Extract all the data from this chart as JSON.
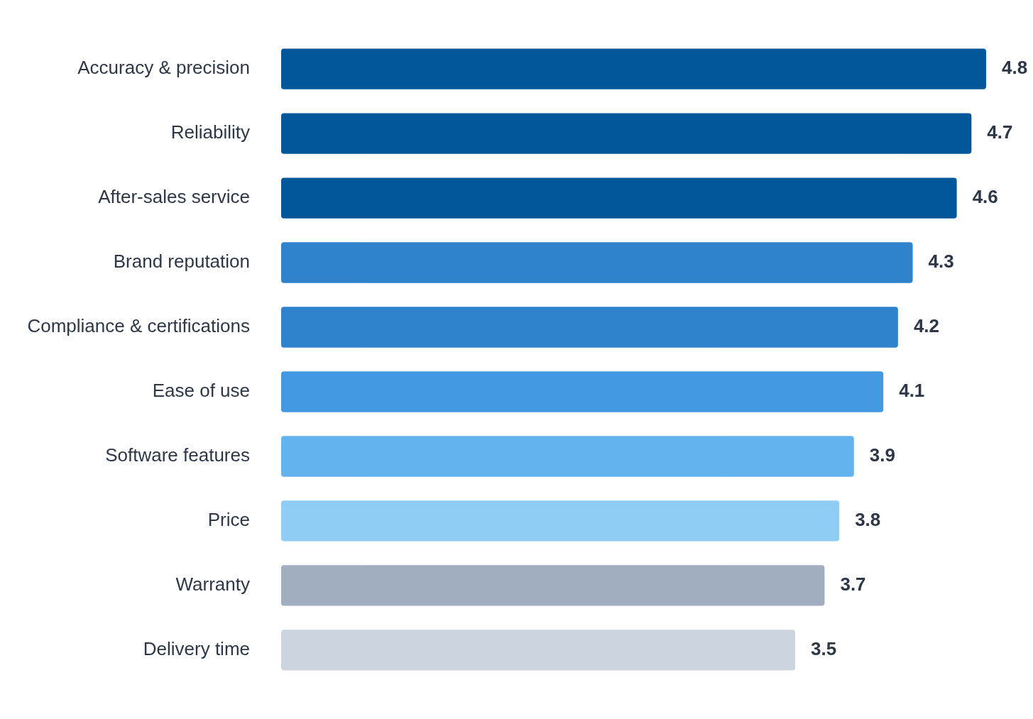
{
  "chart_data": {
    "type": "bar",
    "orientation": "horizontal",
    "categories": [
      "Accuracy & precision",
      "Reliability",
      "After-sales service",
      "Brand reputation",
      "Compliance & certifications",
      "Ease of use",
      "Software features",
      "Price",
      "Warranty",
      "Delivery time"
    ],
    "values": [
      4.8,
      4.7,
      4.6,
      4.3,
      4.2,
      4.1,
      3.9,
      3.8,
      3.7,
      3.5
    ],
    "colors": [
      "#02579b",
      "#02579b",
      "#02579b",
      "#2f82cc",
      "#2f82cc",
      "#4299e1",
      "#63b3ed",
      "#90cdf4",
      "#a0aec0",
      "#cbd5e0"
    ],
    "xlim": [
      0,
      4.8
    ],
    "data_labels": true,
    "tick_labels": "y"
  }
}
